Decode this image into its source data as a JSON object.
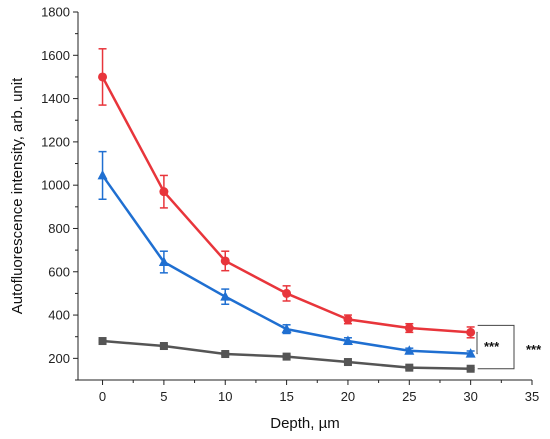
{
  "chart_data": {
    "type": "line",
    "xlabel": "Depth, µm",
    "ylabel": "Autofluorescence intensity, arb. unit",
    "xlim": [
      -2,
      35
    ],
    "ylim": [
      100,
      1800
    ],
    "x_ticks": [
      0,
      5,
      10,
      15,
      20,
      25,
      30,
      35
    ],
    "y_ticks": [
      200,
      400,
      600,
      800,
      1000,
      1200,
      1400,
      1600,
      1800
    ],
    "grid": false,
    "legend": "none",
    "x": [
      0,
      5,
      10,
      15,
      20,
      25,
      30
    ],
    "series": [
      {
        "color": "#e8353b",
        "marker": "circle",
        "values": [
          1500,
          970,
          650,
          500,
          380,
          340,
          320
        ],
        "errors": [
          130,
          75,
          45,
          35,
          20,
          20,
          25
        ]
      },
      {
        "color": "#1f6fd1",
        "marker": "triangle",
        "values": [
          1045,
          645,
          485,
          335,
          280,
          235,
          222
        ],
        "errors": [
          110,
          50,
          35,
          20,
          15,
          12,
          12
        ]
      },
      {
        "color": "#555555",
        "marker": "square",
        "values": [
          280,
          257,
          220,
          208,
          183,
          157,
          152
        ],
        "errors": [
          5,
          5,
          5,
          5,
          5,
          5,
          5
        ]
      }
    ],
    "annotations": [
      {
        "text": "***",
        "between": "red-blue"
      },
      {
        "text": "***",
        "between": "red-gray"
      }
    ]
  }
}
